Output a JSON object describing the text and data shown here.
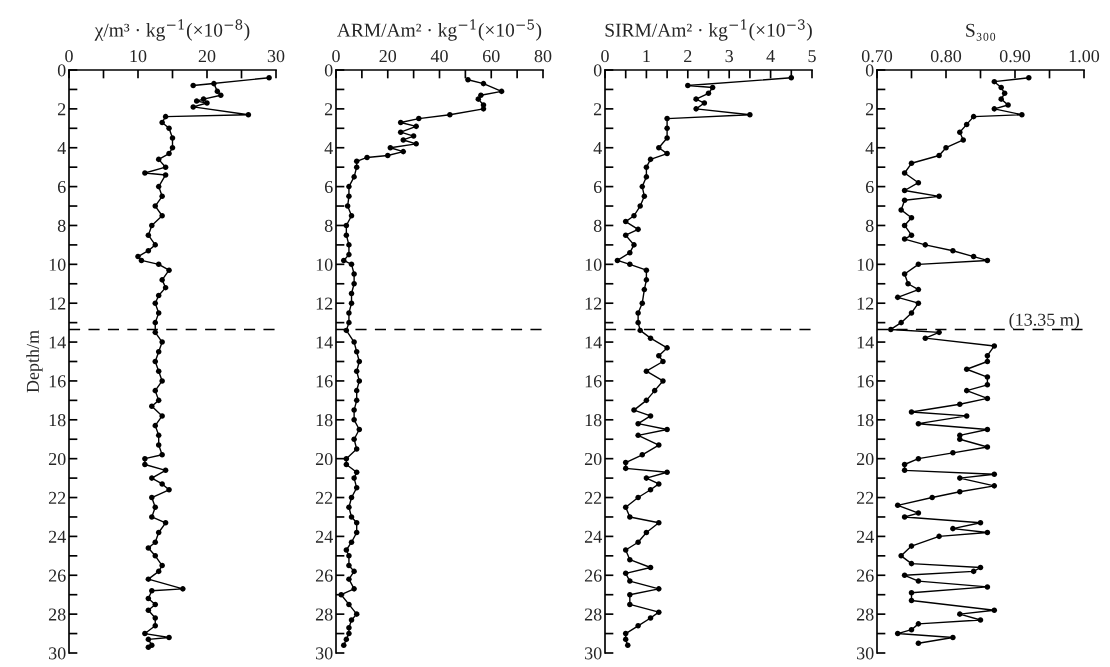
{
  "chart_data": [
    {
      "type": "line",
      "title": "χ/m³ · kg$^{−1}$(×10$^{−8}$)",
      "ylabel": "Depth/m",
      "marker": "circle",
      "line_style": "solid",
      "grid": false,
      "xlim": [
        0,
        30
      ],
      "xticks": [
        0,
        {
          "value": 5,
          "label": null
        },
        10,
        {
          "value": 15,
          "label": null
        },
        20,
        {
          "value": 25,
          "label": null
        },
        30
      ],
      "ylim": [
        30,
        0
      ],
      "yticks": [
        0,
        {
          "value": 1,
          "label": null
        },
        2,
        {
          "value": 3,
          "label": null
        },
        4,
        {
          "value": 5,
          "label": null
        },
        6,
        {
          "value": 7,
          "label": null
        },
        8,
        {
          "value": 9,
          "label": null
        },
        10,
        {
          "value": 11,
          "label": null
        },
        12,
        {
          "value": 13,
          "label": null
        },
        14,
        {
          "value": 15,
          "label": null
        },
        16,
        {
          "value": 17,
          "label": null
        },
        18,
        {
          "value": 19,
          "label": null
        },
        20,
        {
          "value": 21,
          "label": null
        },
        22,
        {
          "value": 23,
          "label": null
        },
        24,
        {
          "value": 25,
          "label": null
        },
        26,
        {
          "value": 27,
          "label": null
        },
        28,
        {
          "value": 29,
          "label": null
        },
        30
      ],
      "ref_lines": [
        {
          "axis": "y",
          "value": 13.35,
          "line_style": "dashed",
          "color": "#000000"
        }
      ],
      "series": [
        {
          "color": "#000000",
          "x": [
            29,
            18,
            21,
            21.5,
            22,
            19.5,
            18.5,
            20,
            18,
            26,
            14,
            13.5,
            14.5,
            15,
            15,
            14.5,
            13,
            14,
            11,
            14,
            13,
            13.5,
            12.5,
            13.5,
            12,
            11.5,
            12.5,
            11.5,
            10,
            10.5,
            13,
            14.5,
            13.5,
            14,
            13,
            12.5,
            13,
            12.5,
            12.5,
            13.5,
            13,
            12.5,
            13,
            13.5,
            12.5,
            13,
            12,
            13.5,
            12.5,
            13,
            13,
            13.5,
            11,
            11,
            14,
            12,
            13.5,
            14.5,
            12,
            12.5,
            12,
            14,
            13,
            12.5,
            11.5,
            12.5,
            13.5,
            13,
            11.5,
            16.5,
            12,
            11.5,
            12.5,
            11.5,
            12.5,
            12.5,
            11,
            14.5,
            11.5,
            12,
            11.5
          ],
          "values": [
            0.4,
            0.8,
            0.7,
            1.1,
            1.3,
            1.5,
            1.6,
            1.7,
            1.9,
            2.3,
            2.4,
            2.7,
            3.0,
            3.5,
            4.0,
            4.3,
            4.6,
            5.0,
            5.3,
            5.4,
            6.0,
            6.5,
            7.0,
            7.5,
            8.0,
            8.5,
            9.0,
            9.3,
            9.6,
            9.8,
            10.0,
            10.3,
            10.8,
            11.2,
            11.6,
            12.0,
            12.5,
            13.0,
            13.5,
            14.0,
            14.5,
            15.0,
            15.5,
            16.0,
            16.5,
            17.0,
            17.3,
            17.8,
            18.3,
            18.8,
            19.3,
            19.8,
            20.0,
            20.3,
            20.6,
            21.0,
            21.3,
            21.6,
            22.0,
            22.5,
            23.0,
            23.3,
            23.8,
            24.3,
            24.6,
            25.0,
            25.5,
            25.8,
            26.2,
            26.7,
            26.8,
            27.2,
            27.5,
            27.8,
            28.2,
            28.6,
            29.0,
            29.2,
            29.3,
            29.6,
            29.7
          ]
        }
      ]
    },
    {
      "type": "line",
      "title": "ARM/Am² · kg$^{−1}$(×10$^{−5}$)",
      "marker": "circle",
      "line_style": "solid",
      "grid": false,
      "xlim": [
        0,
        80
      ],
      "xticks": [
        0,
        {
          "value": 10,
          "label": null
        },
        20,
        {
          "value": 30,
          "label": null
        },
        40,
        {
          "value": 50,
          "label": null
        },
        60,
        {
          "value": 70,
          "label": null
        },
        80
      ],
      "ylim": [
        30,
        0
      ],
      "yticks": [
        0,
        {
          "value": 1,
          "label": null
        },
        2,
        {
          "value": 3,
          "label": null
        },
        4,
        {
          "value": 5,
          "label": null
        },
        6,
        {
          "value": 7,
          "label": null
        },
        8,
        {
          "value": 9,
          "label": null
        },
        10,
        {
          "value": 11,
          "label": null
        },
        12,
        {
          "value": 13,
          "label": null
        },
        14,
        {
          "value": 15,
          "label": null
        },
        16,
        {
          "value": 17,
          "label": null
        },
        18,
        {
          "value": 19,
          "label": null
        },
        20,
        {
          "value": 21,
          "label": null
        },
        22,
        {
          "value": 23,
          "label": null
        },
        24,
        {
          "value": 25,
          "label": null
        },
        26,
        {
          "value": 27,
          "label": null
        },
        28,
        {
          "value": 29,
          "label": null
        },
        30
      ],
      "ref_lines": [
        {
          "axis": "y",
          "value": 13.35,
          "line_style": "dashed",
          "color": "#000000"
        }
      ],
      "series": [
        {
          "color": "#000000",
          "x": [
            51,
            57,
            64,
            56,
            55,
            57,
            57,
            44,
            32,
            25,
            31,
            25,
            30,
            26,
            31,
            21,
            26,
            20,
            12,
            8,
            8,
            7,
            5,
            5,
            4.5,
            6,
            4,
            4,
            5,
            5,
            3,
            6,
            7,
            7,
            6,
            6,
            5,
            5,
            4,
            7,
            8,
            9,
            8,
            9,
            8,
            8,
            7,
            7,
            9,
            7,
            8,
            4,
            4,
            8,
            7,
            8,
            6,
            5,
            6,
            8,
            8,
            6,
            4,
            5,
            5,
            7,
            5,
            7,
            2,
            5,
            8,
            6,
            5,
            5,
            4,
            3
          ],
          "values": [
            0.5,
            0.7,
            1.1,
            1.3,
            1.5,
            1.8,
            2.0,
            2.3,
            2.5,
            2.7,
            2.9,
            3.2,
            3.4,
            3.6,
            3.8,
            4.0,
            4.2,
            4.4,
            4.5,
            4.7,
            5.0,
            5.5,
            6.0,
            6.5,
            7.0,
            7.5,
            8.0,
            8.5,
            9.0,
            9.5,
            9.8,
            10.0,
            10.5,
            11.0,
            11.5,
            12.0,
            12.5,
            13.0,
            13.4,
            14.0,
            14.5,
            15.0,
            15.5,
            16.0,
            16.5,
            17.0,
            17.5,
            18.0,
            18.5,
            19.0,
            19.5,
            20.0,
            20.3,
            20.7,
            21.0,
            21.5,
            22.0,
            22.5,
            23.0,
            23.3,
            23.8,
            24.3,
            24.7,
            25.0,
            25.5,
            25.8,
            26.2,
            26.7,
            27.0,
            27.5,
            28.0,
            28.3,
            28.7,
            29.0,
            29.3,
            29.6
          ]
        }
      ]
    },
    {
      "type": "line",
      "title": "SIRM/Am² · kg$^{−1}$(×10$^{−3}$)",
      "marker": "circle",
      "line_style": "solid",
      "grid": false,
      "xlim": [
        0,
        5
      ],
      "xticks": [
        0,
        {
          "value": 0.5,
          "label": null
        },
        1,
        {
          "value": 1.5,
          "label": null
        },
        2,
        {
          "value": 2.5,
          "label": null
        },
        3,
        {
          "value": 3.5,
          "label": null
        },
        4,
        {
          "value": 4.5,
          "label": null
        },
        5
      ],
      "ylim": [
        30,
        0
      ],
      "yticks": [
        0,
        {
          "value": 1,
          "label": null
        },
        2,
        {
          "value": 3,
          "label": null
        },
        4,
        {
          "value": 5,
          "label": null
        },
        6,
        {
          "value": 7,
          "label": null
        },
        8,
        {
          "value": 9,
          "label": null
        },
        10,
        {
          "value": 11,
          "label": null
        },
        12,
        {
          "value": 13,
          "label": null
        },
        14,
        {
          "value": 15,
          "label": null
        },
        16,
        {
          "value": 17,
          "label": null
        },
        18,
        {
          "value": 19,
          "label": null
        },
        20,
        {
          "value": 21,
          "label": null
        },
        22,
        {
          "value": 23,
          "label": null
        },
        24,
        {
          "value": 25,
          "label": null
        },
        26,
        {
          "value": 27,
          "label": null
        },
        28,
        {
          "value": 29,
          "label": null
        },
        30
      ],
      "ref_lines": [
        {
          "axis": "y",
          "value": 13.35,
          "line_style": "dashed",
          "color": "#000000"
        }
      ],
      "series": [
        {
          "color": "#000000",
          "x": [
            4.5,
            2.0,
            2.6,
            2.5,
            2.2,
            2.4,
            2.2,
            3.5,
            1.5,
            1.5,
            1.5,
            1.3,
            1.5,
            1.1,
            1.0,
            1.0,
            0.9,
            0.95,
            0.85,
            0.7,
            0.5,
            0.8,
            0.5,
            0.7,
            0.6,
            0.3,
            0.6,
            1.0,
            1.0,
            0.95,
            0.9,
            0.8,
            0.8,
            0.85,
            1.1,
            1.5,
            1.3,
            1.4,
            1.0,
            1.4,
            1.2,
            1.0,
            0.7,
            1.1,
            0.8,
            1.5,
            0.8,
            1.3,
            0.9,
            0.5,
            0.5,
            1.5,
            1.0,
            1.3,
            1.1,
            0.8,
            0.5,
            0.6,
            1.3,
            1.0,
            0.8,
            0.5,
            0.6,
            1.1,
            0.5,
            0.6,
            1.3,
            0.6,
            0.6,
            1.3,
            1.1,
            0.8,
            0.5,
            0.5,
            0.55
          ],
          "values": [
            0.4,
            0.8,
            0.9,
            1.2,
            1.5,
            1.7,
            2.0,
            2.3,
            2.5,
            3.0,
            3.5,
            4.0,
            4.3,
            4.6,
            5.0,
            5.5,
            6.0,
            6.5,
            7.0,
            7.5,
            7.8,
            8.2,
            8.5,
            9.0,
            9.4,
            9.8,
            10.0,
            10.3,
            10.8,
            11.3,
            12.0,
            12.5,
            13.0,
            13.4,
            13.8,
            14.3,
            14.7,
            15.0,
            15.5,
            16.0,
            16.5,
            17.0,
            17.5,
            17.8,
            18.2,
            18.5,
            18.8,
            19.3,
            19.8,
            20.2,
            20.5,
            20.7,
            21.0,
            21.3,
            21.6,
            22.0,
            22.5,
            23.0,
            23.3,
            23.8,
            24.3,
            24.7,
            25.2,
            25.6,
            25.9,
            26.3,
            26.7,
            27.0,
            27.5,
            27.9,
            28.2,
            28.6,
            29.0,
            29.3,
            29.6
          ]
        }
      ]
    },
    {
      "type": "line",
      "title": "S₃₀₀",
      "marker": "circle",
      "line_style": "solid",
      "grid": false,
      "xlim": [
        0.7,
        1.0
      ],
      "xticks": [
        {
          "value": 0.7,
          "label": "0.70"
        },
        {
          "value": 0.75,
          "label": null
        },
        {
          "value": 0.8,
          "label": "0.80"
        },
        {
          "value": 0.85,
          "label": null
        },
        {
          "value": 0.9,
          "label": "0.90"
        },
        {
          "value": 0.95,
          "label": null
        },
        {
          "value": 1.0,
          "label": "1.00"
        }
      ],
      "ylim": [
        30,
        0
      ],
      "yticks": [
        0,
        {
          "value": 1,
          "label": null
        },
        2,
        {
          "value": 3,
          "label": null
        },
        4,
        {
          "value": 5,
          "label": null
        },
        6,
        {
          "value": 7,
          "label": null
        },
        8,
        {
          "value": 9,
          "label": null
        },
        10,
        {
          "value": 11,
          "label": null
        },
        12,
        {
          "value": 13,
          "label": null
        },
        14,
        {
          "value": 15,
          "label": null
        },
        16,
        {
          "value": 17,
          "label": null
        },
        18,
        {
          "value": 19,
          "label": null
        },
        20,
        {
          "value": 21,
          "label": null
        },
        22,
        {
          "value": 23,
          "label": null
        },
        24,
        {
          "value": 25,
          "label": null
        },
        26,
        {
          "value": 27,
          "label": null
        },
        28,
        {
          "value": 29,
          "label": null
        },
        30
      ],
      "ref_lines": [
        {
          "axis": "y",
          "value": 13.35,
          "label": "(13.35 m)",
          "line_style": "dashed",
          "color": "#000000"
        }
      ],
      "series": [
        {
          "color": "#000000",
          "x": [
            0.92,
            0.87,
            0.88,
            0.885,
            0.88,
            0.89,
            0.87,
            0.91,
            0.84,
            0.83,
            0.82,
            0.825,
            0.8,
            0.79,
            0.75,
            0.74,
            0.76,
            0.74,
            0.79,
            0.74,
            0.735,
            0.75,
            0.74,
            0.75,
            0.74,
            0.77,
            0.81,
            0.84,
            0.86,
            0.76,
            0.74,
            0.745,
            0.76,
            0.73,
            0.76,
            0.75,
            0.735,
            0.72,
            0.79,
            0.77,
            0.87,
            0.86,
            0.86,
            0.83,
            0.86,
            0.86,
            0.83,
            0.86,
            0.82,
            0.75,
            0.83,
            0.76,
            0.86,
            0.82,
            0.82,
            0.86,
            0.81,
            0.76,
            0.74,
            0.74,
            0.87,
            0.82,
            0.87,
            0.82,
            0.78,
            0.73,
            0.76,
            0.74,
            0.85,
            0.81,
            0.86,
            0.79,
            0.75,
            0.735,
            0.75,
            0.85,
            0.84,
            0.74,
            0.76,
            0.86,
            0.75,
            0.75,
            0.87,
            0.82,
            0.85,
            0.76,
            0.75,
            0.73,
            0.81,
            0.76
          ],
          "values": [
            0.4,
            0.6,
            0.9,
            1.2,
            1.5,
            1.8,
            2.0,
            2.3,
            2.4,
            2.8,
            3.2,
            3.6,
            4.0,
            4.4,
            4.8,
            5.3,
            5.8,
            6.2,
            6.5,
            6.7,
            7.2,
            7.6,
            8.0,
            8.5,
            8.7,
            9.0,
            9.3,
            9.6,
            9.8,
            10.0,
            10.5,
            11.0,
            11.3,
            11.7,
            12.0,
            12.5,
            13.0,
            13.35,
            13.5,
            13.8,
            14.2,
            14.7,
            15.0,
            15.4,
            15.8,
            16.2,
            16.5,
            16.9,
            17.2,
            17.6,
            17.8,
            18.2,
            18.5,
            18.8,
            19.0,
            19.4,
            19.7,
            20.0,
            20.3,
            20.6,
            20.8,
            21.0,
            21.4,
            21.7,
            22.0,
            22.4,
            22.8,
            23.0,
            23.3,
            23.6,
            23.8,
            24.0,
            24.5,
            25.0,
            25.4,
            25.6,
            25.8,
            26.0,
            26.3,
            26.6,
            26.9,
            27.3,
            27.8,
            28.0,
            28.3,
            28.5,
            28.8,
            29.0,
            29.2,
            29.5
          ]
        }
      ]
    }
  ]
}
